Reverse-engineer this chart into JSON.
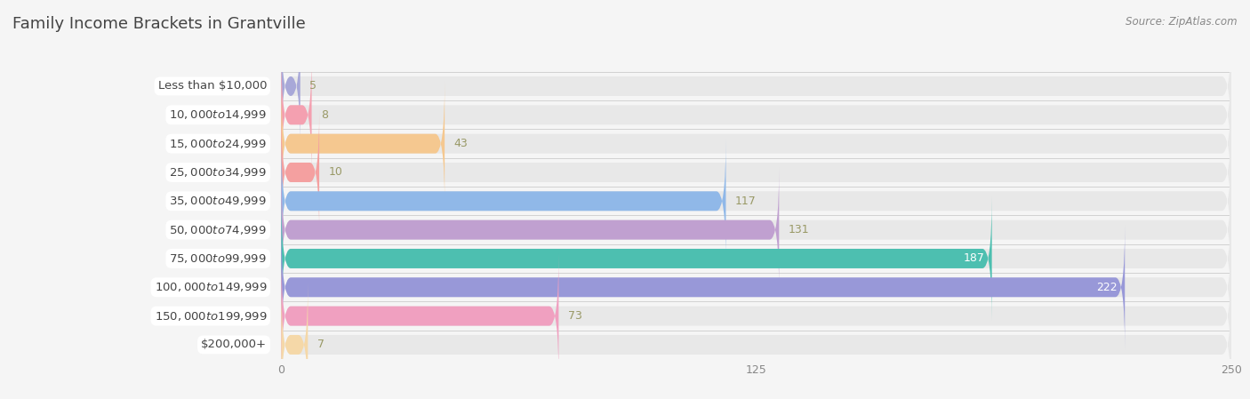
{
  "title": "Family Income Brackets in Grantville",
  "source": "Source: ZipAtlas.com",
  "categories": [
    "Less than $10,000",
    "$10,000 to $14,999",
    "$15,000 to $24,999",
    "$25,000 to $34,999",
    "$35,000 to $49,999",
    "$50,000 to $74,999",
    "$75,000 to $99,999",
    "$100,000 to $149,999",
    "$150,000 to $199,999",
    "$200,000+"
  ],
  "values": [
    5,
    8,
    43,
    10,
    117,
    131,
    187,
    222,
    73,
    7
  ],
  "bar_colors": [
    "#a8a8d8",
    "#f4a0b0",
    "#f5c890",
    "#f4a0a0",
    "#90b8e8",
    "#c0a0d0",
    "#4dbfb0",
    "#9898d8",
    "#f0a0c0",
    "#f5d8a8"
  ],
  "xlim": [
    0,
    250
  ],
  "xticks": [
    0,
    125,
    250
  ],
  "background_color": "#f5f5f5",
  "bar_row_bg_color": "#e8e8e8",
  "label_panel_color": "#ffffff",
  "title_fontsize": 13,
  "label_fontsize": 9.5,
  "value_fontsize": 9,
  "bar_height": 0.68,
  "value_label_color_dark": "#999966",
  "value_label_color_light": "#ffffff"
}
